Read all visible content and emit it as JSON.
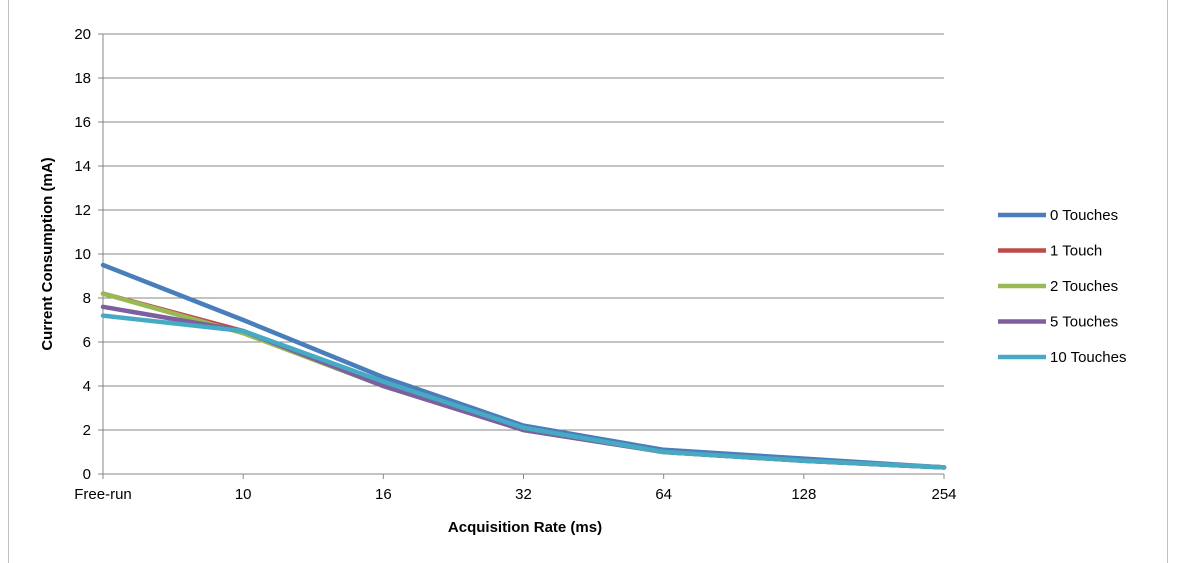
{
  "chart_data": {
    "type": "line",
    "categories": [
      "Free-run",
      "10",
      "16",
      "32",
      "64",
      "128",
      "254"
    ],
    "xlabel": "Acquisition Rate (ms)",
    "ylabel": "Current Consumption (mA)",
    "ylim": [
      0,
      20
    ],
    "yticks": [
      0,
      2,
      4,
      6,
      8,
      10,
      12,
      14,
      16,
      18,
      20
    ],
    "grid": true,
    "legend_position": "right",
    "series": [
      {
        "name": "0 Touches",
        "color": "#4a7ebb",
        "values": [
          9.5,
          7.0,
          4.4,
          2.2,
          1.1,
          0.7,
          0.3
        ]
      },
      {
        "name": "1 Touch",
        "color": "#be4b48",
        "values": [
          8.2,
          6.5,
          4.0,
          2.0,
          1.0,
          0.6,
          0.3
        ]
      },
      {
        "name": "2 Touches",
        "color": "#98b954",
        "values": [
          8.2,
          6.4,
          4.0,
          2.0,
          1.0,
          0.6,
          0.3
        ]
      },
      {
        "name": "5 Touches",
        "color": "#7d5fa0",
        "values": [
          7.6,
          6.5,
          4.0,
          2.0,
          1.0,
          0.6,
          0.3
        ]
      },
      {
        "name": "10 Touches",
        "color": "#46aac5",
        "values": [
          7.2,
          6.5,
          4.2,
          2.1,
          1.0,
          0.6,
          0.3
        ]
      }
    ]
  }
}
